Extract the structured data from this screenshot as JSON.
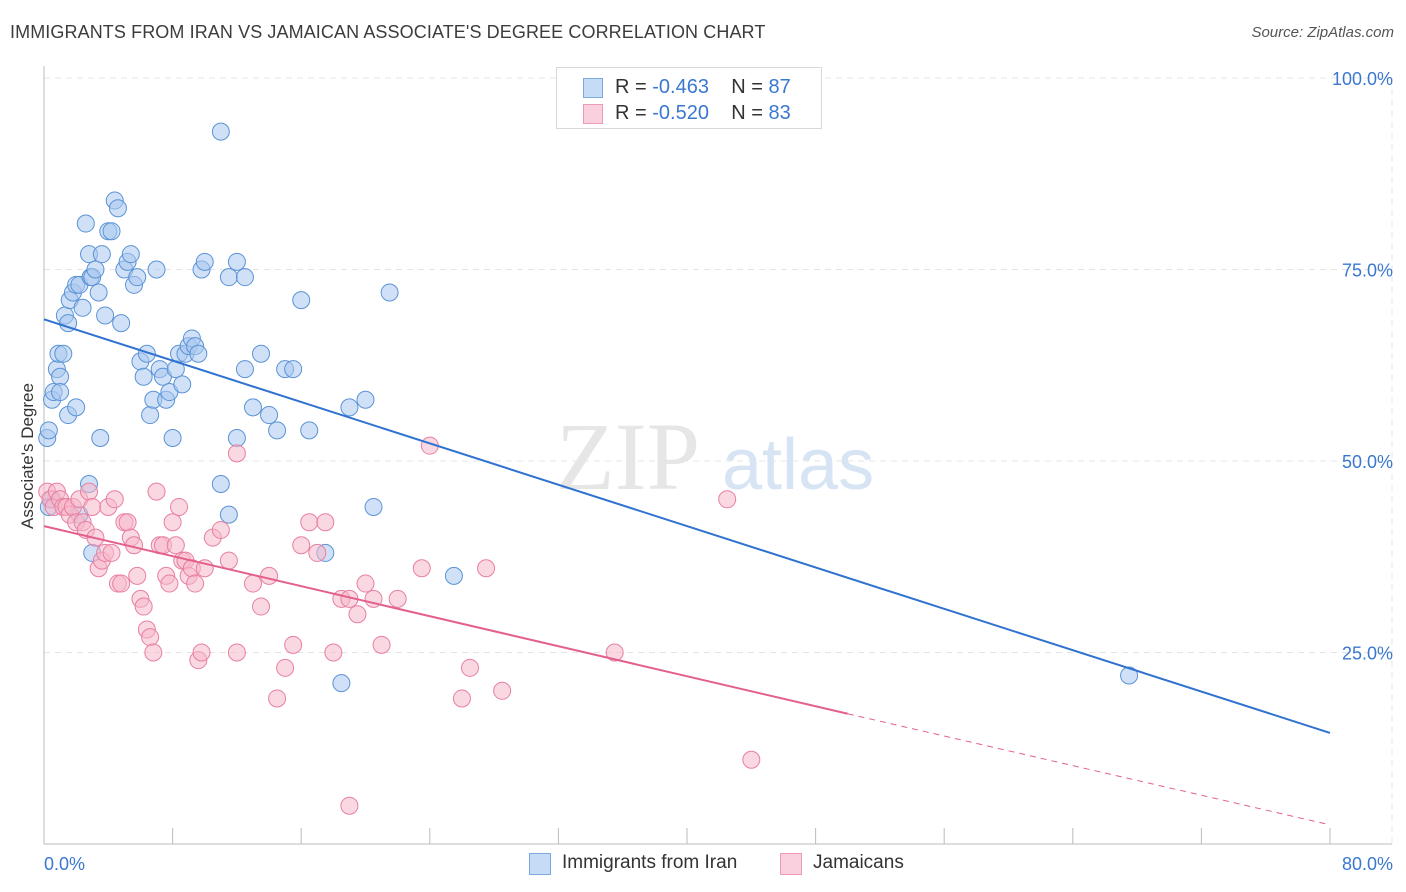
{
  "header": {
    "title": "IMMIGRANTS FROM IRAN VS JAMAICAN ASSOCIATE'S DEGREE CORRELATION CHART",
    "source": "Source: ZipAtlas.com"
  },
  "legend": {
    "series1": {
      "r_label": "R =",
      "r_value": "-0.463",
      "n_label": "N =",
      "n_value": "87"
    },
    "series2": {
      "r_label": "R =",
      "r_value": "-0.520",
      "n_label": "N =",
      "n_value": "83"
    }
  },
  "watermark": {
    "zip": "ZIP",
    "atlas": "atlas"
  },
  "colors": {
    "blue_fill": "#aac8f0",
    "blue_edge": "#5b93d6",
    "blue_line": "#2f72d0",
    "pink_fill": "#f6b8cb",
    "pink_edge": "#e87fa2",
    "pink_line": "#e4608c",
    "tick_label": "#3a78cf",
    "grid": "#e4e4e4",
    "axis": "#bbbbbb"
  },
  "chart_data": {
    "type": "scatter",
    "title": "IMMIGRANTS FROM IRAN VS JAMAICAN ASSOCIATE'S DEGREE CORRELATION CHART",
    "xlabel": "",
    "ylabel": "Associate's Degree",
    "xlim": [
      0,
      80
    ],
    "ylim": [
      0,
      100
    ],
    "x_tick_labels": [
      "0.0%",
      "80.0%"
    ],
    "y_tick_values": [
      25,
      50,
      75,
      100
    ],
    "y_tick_labels": [
      "25.0%",
      "50.0%",
      "75.0%",
      "100.0%"
    ],
    "grid": true,
    "series": [
      {
        "name": "Immigrants from Iran",
        "r": -0.463,
        "n": 87,
        "trend": {
          "x0": 0,
          "y0": 68.5,
          "x1": 80,
          "y1": 14.5
        },
        "points": [
          [
            0.5,
            45
          ],
          [
            0.3,
            44
          ],
          [
            0.2,
            53
          ],
          [
            0.3,
            54
          ],
          [
            0.5,
            58
          ],
          [
            0.6,
            59
          ],
          [
            0.8,
            62
          ],
          [
            0.9,
            64
          ],
          [
            1.0,
            61
          ],
          [
            1.2,
            64
          ],
          [
            1.3,
            69
          ],
          [
            1.5,
            68
          ],
          [
            1.6,
            71
          ],
          [
            1.8,
            72
          ],
          [
            2.0,
            73
          ],
          [
            2.2,
            73
          ],
          [
            2.4,
            70
          ],
          [
            2.6,
            81
          ],
          [
            2.8,
            77
          ],
          [
            2.9,
            74
          ],
          [
            3.0,
            74
          ],
          [
            3.2,
            75
          ],
          [
            3.4,
            72
          ],
          [
            3.6,
            77
          ],
          [
            3.8,
            69
          ],
          [
            4.0,
            80
          ],
          [
            4.2,
            80
          ],
          [
            4.4,
            84
          ],
          [
            4.6,
            83
          ],
          [
            4.8,
            68
          ],
          [
            5.0,
            75
          ],
          [
            5.2,
            76
          ],
          [
            5.4,
            77
          ],
          [
            5.6,
            73
          ],
          [
            5.8,
            74
          ],
          [
            6.0,
            63
          ],
          [
            6.2,
            61
          ],
          [
            6.4,
            64
          ],
          [
            6.6,
            56
          ],
          [
            6.8,
            58
          ],
          [
            7.0,
            75
          ],
          [
            7.2,
            62
          ],
          [
            7.4,
            61
          ],
          [
            7.6,
            58
          ],
          [
            7.8,
            59
          ],
          [
            8.0,
            53
          ],
          [
            8.2,
            62
          ],
          [
            8.4,
            64
          ],
          [
            8.6,
            60
          ],
          [
            8.8,
            64
          ],
          [
            9.0,
            65
          ],
          [
            9.2,
            66
          ],
          [
            9.4,
            65
          ],
          [
            9.6,
            64
          ],
          [
            9.8,
            75
          ],
          [
            10.0,
            76
          ],
          [
            11.0,
            93
          ],
          [
            11.5,
            74
          ],
          [
            12.0,
            76
          ],
          [
            12.5,
            74
          ],
          [
            11.0,
            47
          ],
          [
            11.5,
            43
          ],
          [
            12.0,
            53
          ],
          [
            12.5,
            62
          ],
          [
            13.0,
            57
          ],
          [
            13.5,
            64
          ],
          [
            14.0,
            56
          ],
          [
            14.5,
            54
          ],
          [
            15.0,
            62
          ],
          [
            15.5,
            62
          ],
          [
            16.0,
            71
          ],
          [
            16.5,
            54
          ],
          [
            17.5,
            38
          ],
          [
            19.0,
            57
          ],
          [
            18.5,
            21
          ],
          [
            20.0,
            58
          ],
          [
            20.5,
            44
          ],
          [
            21.5,
            72
          ],
          [
            25.5,
            35
          ],
          [
            67.5,
            22
          ],
          [
            2.2,
            43
          ],
          [
            2.8,
            47
          ],
          [
            3.0,
            38
          ],
          [
            1.0,
            59
          ],
          [
            1.5,
            56
          ],
          [
            2.0,
            57
          ],
          [
            3.5,
            53
          ]
        ]
      },
      {
        "name": "Jamaicans",
        "r": -0.52,
        "n": 83,
        "trend": {
          "x0": 0,
          "y0": 41.5,
          "x1": 50,
          "y1": 17.0,
          "dash_to_x": 80,
          "dash_to_y": 2.5
        },
        "points": [
          [
            0.2,
            46
          ],
          [
            0.4,
            45
          ],
          [
            0.6,
            44
          ],
          [
            0.8,
            46
          ],
          [
            1.0,
            45
          ],
          [
            1.2,
            44
          ],
          [
            1.4,
            44
          ],
          [
            1.6,
            43
          ],
          [
            1.8,
            44
          ],
          [
            2.0,
            42
          ],
          [
            2.2,
            45
          ],
          [
            2.4,
            42
          ],
          [
            2.6,
            41
          ],
          [
            2.8,
            46
          ],
          [
            3.0,
            44
          ],
          [
            3.2,
            40
          ],
          [
            3.4,
            36
          ],
          [
            3.6,
            37
          ],
          [
            3.8,
            38
          ],
          [
            4.0,
            44
          ],
          [
            4.2,
            38
          ],
          [
            4.4,
            45
          ],
          [
            4.6,
            34
          ],
          [
            4.8,
            34
          ],
          [
            5.0,
            42
          ],
          [
            5.2,
            42
          ],
          [
            5.4,
            40
          ],
          [
            5.6,
            39
          ],
          [
            5.8,
            35
          ],
          [
            6.0,
            32
          ],
          [
            6.2,
            31
          ],
          [
            6.4,
            28
          ],
          [
            6.6,
            27
          ],
          [
            6.8,
            25
          ],
          [
            7.0,
            46
          ],
          [
            7.2,
            39
          ],
          [
            7.4,
            39
          ],
          [
            7.6,
            35
          ],
          [
            7.8,
            34
          ],
          [
            8.0,
            42
          ],
          [
            8.2,
            39
          ],
          [
            8.4,
            44
          ],
          [
            8.6,
            37
          ],
          [
            8.8,
            37
          ],
          [
            9.0,
            35
          ],
          [
            9.2,
            36
          ],
          [
            9.4,
            34
          ],
          [
            9.6,
            24
          ],
          [
            9.8,
            25
          ],
          [
            10.0,
            36
          ],
          [
            10.5,
            40
          ],
          [
            11.0,
            41
          ],
          [
            11.5,
            37
          ],
          [
            12.0,
            51
          ],
          [
            12.0,
            25
          ],
          [
            13.0,
            34
          ],
          [
            13.5,
            31
          ],
          [
            14.0,
            35
          ],
          [
            14.5,
            19
          ],
          [
            15.0,
            23
          ],
          [
            15.5,
            26
          ],
          [
            16.0,
            39
          ],
          [
            16.5,
            42
          ],
          [
            17.0,
            38
          ],
          [
            17.5,
            42
          ],
          [
            18.0,
            25
          ],
          [
            18.5,
            32
          ],
          [
            19.0,
            32
          ],
          [
            19.5,
            30
          ],
          [
            20.0,
            34
          ],
          [
            20.5,
            32
          ],
          [
            21.0,
            26
          ],
          [
            22.0,
            32
          ],
          [
            23.5,
            36
          ],
          [
            24.0,
            52
          ],
          [
            26.0,
            19
          ],
          [
            26.5,
            23
          ],
          [
            27.5,
            36
          ],
          [
            28.5,
            20
          ],
          [
            35.5,
            25
          ],
          [
            42.5,
            45
          ],
          [
            44.0,
            11
          ],
          [
            19.0,
            5
          ]
        ]
      }
    ]
  },
  "bottom_legend": {
    "item1": "Immigrants from Iran",
    "item2": "Jamaicans"
  }
}
